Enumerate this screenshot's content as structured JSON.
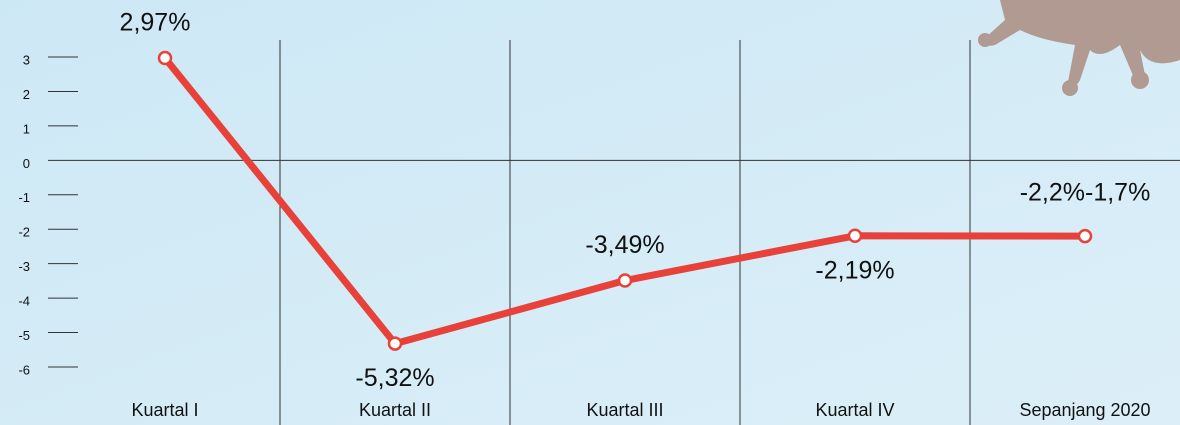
{
  "chart_data": {
    "type": "line",
    "categories": [
      "Kuartal I",
      "Kuartal II",
      "Kuartal III",
      "Kuartal IV",
      "Sepanjang 2020"
    ],
    "series": [
      {
        "color": "#e8413a",
        "values": [
          2.97,
          -5.32,
          -3.49,
          -2.19,
          -2.2
        ],
        "value_labels": [
          "2,97%",
          "-5,32%",
          "-3,49%",
          "-2,19%",
          null
        ]
      }
    ],
    "annotations": [
      "-2,2%-1,7%"
    ],
    "ylim": [
      -6,
      3
    ],
    "yticks": [
      3,
      2,
      1,
      0,
      -1,
      -2,
      -3,
      -4,
      -5,
      -6
    ]
  }
}
